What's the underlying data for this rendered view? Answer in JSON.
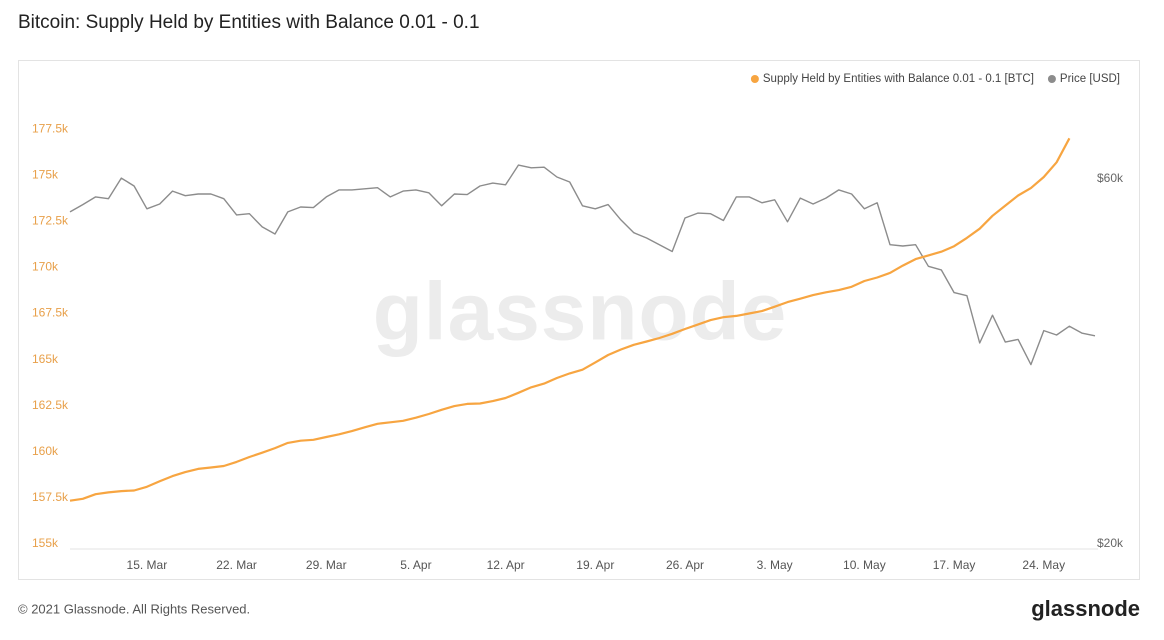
{
  "chart_data": {
    "type": "line",
    "title": "Bitcoin: Supply Held by Entities with Balance 0.01 - 0.1",
    "footer": "© 2021 Glassnode. All Rights Reserved.",
    "watermark": "glassnode",
    "logo": "glassnode",
    "categories": [
      null,
      null,
      null,
      null,
      null,
      null,
      "15. Mar",
      null,
      null,
      null,
      null,
      null,
      null,
      "22. Mar",
      null,
      null,
      null,
      null,
      null,
      null,
      "29. Mar",
      null,
      null,
      null,
      null,
      null,
      null,
      "5. Apr",
      null,
      null,
      null,
      null,
      null,
      null,
      "12. Apr",
      null,
      null,
      null,
      null,
      null,
      null,
      "19. Apr",
      null,
      null,
      null,
      null,
      null,
      null,
      "26. Apr",
      null,
      null,
      null,
      null,
      null,
      null,
      "3. May",
      null,
      null,
      null,
      null,
      null,
      null,
      "10. May",
      null,
      null,
      null,
      null,
      null,
      null,
      "17. May",
      null,
      null,
      null,
      null,
      null,
      null,
      "24. May",
      null,
      null,
      null,
      null
    ],
    "series": [
      {
        "name": "Supply Held by Entities with Balance 0.01 - 0.1 [BTC]",
        "color": "#f7a541",
        "axis": "y",
        "values": [
          157350,
          157450,
          157700,
          157800,
          157870,
          157900,
          158100,
          158400,
          158680,
          158900,
          159070,
          159150,
          159230,
          159450,
          159720,
          159950,
          160200,
          160480,
          160600,
          160650,
          160800,
          160950,
          161120,
          161330,
          161520,
          161600,
          161680,
          161850,
          162050,
          162280,
          162480,
          162600,
          162620,
          162750,
          162920,
          163200,
          163500,
          163700,
          164000,
          164250,
          164450,
          164850,
          165250,
          165550,
          165800,
          165980,
          166170,
          166400,
          166660,
          166900,
          167140,
          167300,
          167370,
          167500,
          167630,
          167870,
          168120,
          168300,
          168500,
          168650,
          168770,
          168950,
          169260,
          169450,
          169700,
          170100,
          170450,
          170650,
          170850,
          171150,
          171600,
          172100,
          172800,
          173350,
          173900,
          174300,
          174900,
          175700,
          177000,
          null,
          null
        ]
      },
      {
        "name": "Price [USD]",
        "color": "#8c8c8c",
        "axis": "y2",
        "values": [
          54300,
          55500,
          56800,
          56500,
          60100,
          58700,
          54800,
          55600,
          57800,
          57000,
          57300,
          57300,
          56500,
          53800,
          54000,
          51900,
          50800,
          54300,
          55100,
          55000,
          56800,
          58000,
          58000,
          58200,
          58400,
          56800,
          57800,
          58000,
          57500,
          55300,
          57300,
          57200,
          58700,
          59200,
          58900,
          62500,
          62000,
          62100,
          60300,
          59400,
          55300,
          54800,
          55500,
          53000,
          51000,
          50200,
          49200,
          48200,
          53300,
          54100,
          54000,
          52900,
          56800,
          56800,
          55800,
          56300,
          52700,
          56600,
          55600,
          56600,
          58000,
          57300,
          54800,
          55800,
          49200,
          49000,
          49200,
          46100,
          45600,
          42600,
          42200,
          36600,
          39800,
          36700,
          37000,
          34300,
          38000,
          37500,
          38500,
          37700,
          37400
        ]
      }
    ],
    "ylim": [
      155000,
      180000
    ],
    "yticks": [
      {
        "value": 155000,
        "label": "155k"
      },
      {
        "value": 157500,
        "label": "157.5k"
      },
      {
        "value": 160000,
        "label": "160k"
      },
      {
        "value": 162500,
        "label": "162.5k"
      },
      {
        "value": 165000,
        "label": "165k"
      },
      {
        "value": 167500,
        "label": "167.5k"
      },
      {
        "value": 170000,
        "label": "170k"
      },
      {
        "value": 172500,
        "label": "172.5k"
      },
      {
        "value": 175000,
        "label": "175k"
      },
      {
        "value": 177500,
        "label": "177.5k"
      }
    ],
    "y2lim": [
      20000,
      80000
    ],
    "y2ticks": [
      {
        "value": 20000,
        "label": "$20k"
      },
      {
        "value": 60000,
        "label": "$60k"
      }
    ],
    "y2log": true,
    "grid": false,
    "legend": "top-right"
  }
}
